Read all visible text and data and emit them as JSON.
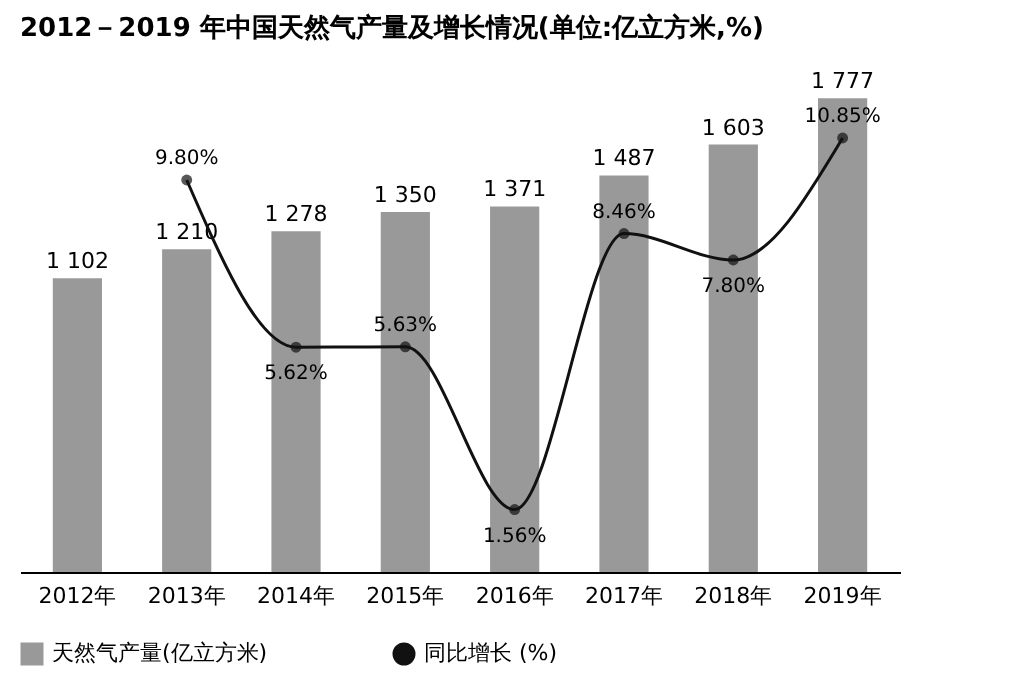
{
  "chart_data": {
    "type": "bar",
    "title": "2012－2019 年中国天然气产量及增长情况(单位:亿立方米,%)",
    "categories": [
      "2012年",
      "2013年",
      "2014年",
      "2015年",
      "2016年",
      "2017年",
      "2018年",
      "2019年"
    ],
    "series": [
      {
        "name": "天然气产量(亿立方米)",
        "color": "#999999",
        "values": [
          1102,
          1210,
          1278,
          1350,
          1371,
          1487,
          1603,
          1777
        ],
        "value_labels": [
          "1 102",
          "1 210",
          "1 278",
          "1 350",
          "1 371",
          "1 487",
          "1 603",
          "1 777"
        ]
      },
      {
        "name": "同比增长 (%)",
        "type": "line",
        "axis": "y2",
        "color": "#111111",
        "marker": "circle",
        "values": [
          null,
          9.8,
          5.62,
          5.63,
          1.56,
          8.46,
          7.8,
          10.85
        ],
        "value_labels": [
          null,
          "9.80%",
          "5.62%",
          "5.63%",
          "1.56%",
          "8.46%",
          "7.80%",
          "10.85%"
        ]
      }
    ],
    "tick_labels": "x",
    "legend": "bottom"
  }
}
